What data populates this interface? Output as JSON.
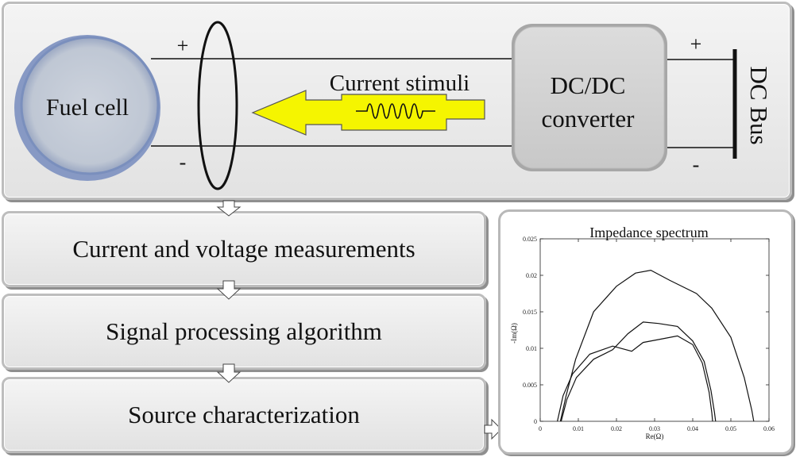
{
  "top": {
    "fuel_cell_label": "Fuel cell",
    "plus_left": "+",
    "minus_left": "-",
    "stimuli_label": "Current stimuli",
    "converter_line1": "DC/DC",
    "converter_line2": "converter",
    "plus_right": "+",
    "minus_right": "-",
    "dc_bus_label": "DC Bus"
  },
  "steps": {
    "measurements": "Current and voltage measurements",
    "signal_processing": "Signal processing algorithm",
    "characterization": "Source characterization"
  },
  "colors": {
    "stimuli_arrow": "#f5f500",
    "fuel_cell_fill": "#c4ccd8",
    "fuel_cell_ring": "#7088b8",
    "converter_fill": "#d4d4d4"
  },
  "chart_data": {
    "type": "line",
    "title": "Impedance spectrum",
    "xlabel": "Re(Ω)",
    "ylabel": "-Im(Ω)",
    "xlim": [
      0,
      0.06
    ],
    "ylim": [
      0,
      0.025
    ],
    "xticks": [
      "0",
      "0.01",
      "0.02",
      "0.03",
      "0.04",
      "0.05",
      "0.06"
    ],
    "yticks": [
      "0",
      "0.005",
      "0.01",
      "0.015",
      "0.02",
      "0.025"
    ],
    "grid": false,
    "series": [
      {
        "x": [
          0.0053,
          0.0068,
          0.0093,
          0.014,
          0.02,
          0.025,
          0.029,
          0.034,
          0.041,
          0.045,
          0.05,
          0.0535,
          0.0555,
          0.056
        ],
        "y": [
          0,
          0.0035,
          0.0085,
          0.015,
          0.0185,
          0.0203,
          0.0207,
          0.0193,
          0.0175,
          0.0155,
          0.0115,
          0.006,
          0.0015,
          0
        ]
      },
      {
        "x": [
          0.0045,
          0.006,
          0.0085,
          0.013,
          0.019,
          0.024,
          0.027,
          0.031,
          0.036,
          0.04,
          0.0425,
          0.0443,
          0.045,
          0.0452
        ],
        "y": [
          0,
          0.0035,
          0.0065,
          0.0092,
          0.0103,
          0.0096,
          0.0108,
          0.0112,
          0.0117,
          0.0105,
          0.008,
          0.004,
          0.0012,
          0
        ]
      },
      {
        "x": [
          0.0055,
          0.007,
          0.0095,
          0.014,
          0.019,
          0.023,
          0.027,
          0.031,
          0.036,
          0.04,
          0.043,
          0.0448,
          0.0457,
          0.046
        ],
        "y": [
          0,
          0.003,
          0.006,
          0.0085,
          0.0098,
          0.012,
          0.0136,
          0.0134,
          0.013,
          0.011,
          0.0082,
          0.0042,
          0.0012,
          0
        ]
      }
    ]
  }
}
